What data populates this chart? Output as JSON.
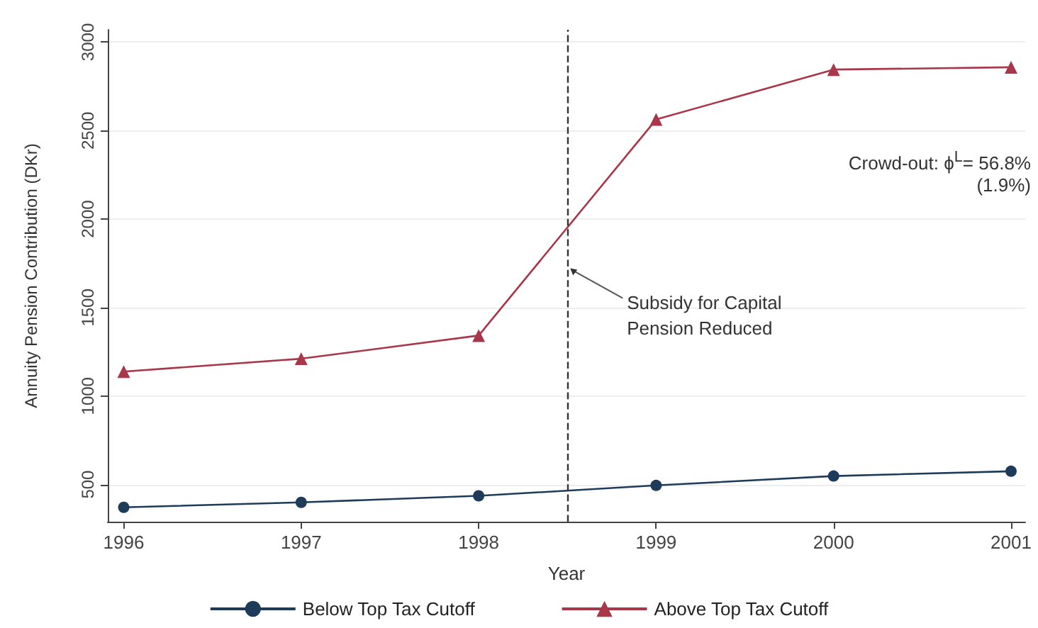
{
  "chart_data": {
    "type": "line",
    "xlabel": "Year",
    "ylabel": "Annuity Pension Contribution (DKr)",
    "x": [
      1996,
      1997,
      1998,
      1999,
      2000,
      2001
    ],
    "series": [
      {
        "name": "Below Top Tax Cutoff",
        "color": "#1f3b5a",
        "marker": "circle",
        "values": [
          371,
          399,
          436,
          495,
          548,
          575
        ]
      },
      {
        "name": "Above Top Tax Cutoff",
        "color": "#a8374a",
        "marker": "triangle",
        "values": [
          1138,
          1211,
          1342,
          2563,
          2845,
          2858
        ]
      }
    ],
    "xlim": [
      1995.91,
      2001.08
    ],
    "xticks": [
      1996,
      1997,
      1998,
      1999,
      2000,
      2001
    ],
    "ylim": [
      290,
      3070
    ],
    "yticks": [
      500,
      1000,
      1500,
      2000,
      2500,
      3000
    ],
    "grid": "y",
    "legend": "bottom",
    "line_style": "solid",
    "ref_lines": [
      {
        "axis": "x",
        "value": 1998.5,
        "label": null,
        "color": "#333333",
        "line_style": "dashed"
      }
    ],
    "annotations": [
      {
        "text": "Subsidy for Capital\nPension Reduced",
        "x": 1998.5,
        "y": 1730
      },
      "Crowd-out: ϕ$^{L}$= 56.8%\n(1.9%)"
    ]
  }
}
